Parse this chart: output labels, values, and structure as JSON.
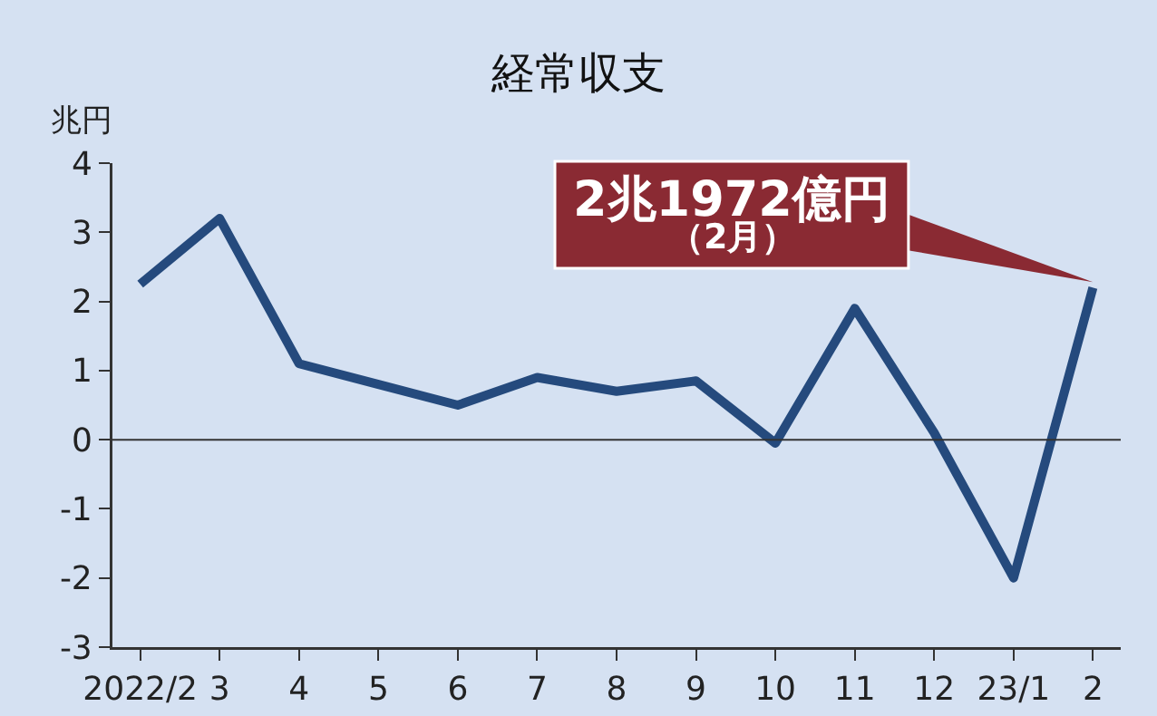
{
  "chart_data": {
    "type": "line",
    "title": "経常収支",
    "ylabel": "兆円",
    "categories": [
      "2022/2",
      "3",
      "4",
      "5",
      "6",
      "7",
      "8",
      "9",
      "10",
      "11",
      "12",
      "23/1",
      "2"
    ],
    "series": [
      {
        "color": "#254a7d",
        "values": [
          2.25,
          3.2,
          1.1,
          0.8,
          0.5,
          0.9,
          0.7,
          0.85,
          -0.05,
          1.9,
          0.1,
          -2.0,
          2.2
        ]
      }
    ],
    "ylim": [
      -3,
      4
    ],
    "yticks": [
      -3,
      -2,
      -1,
      0,
      1,
      2,
      3,
      4
    ],
    "grid": false,
    "marker": "none",
    "line_style": "solid",
    "ref_lines": [
      {
        "axis": "y",
        "value": 0,
        "color": "#333333"
      }
    ],
    "annotations": [
      "2兆1972億円",
      "（2月）"
    ]
  }
}
